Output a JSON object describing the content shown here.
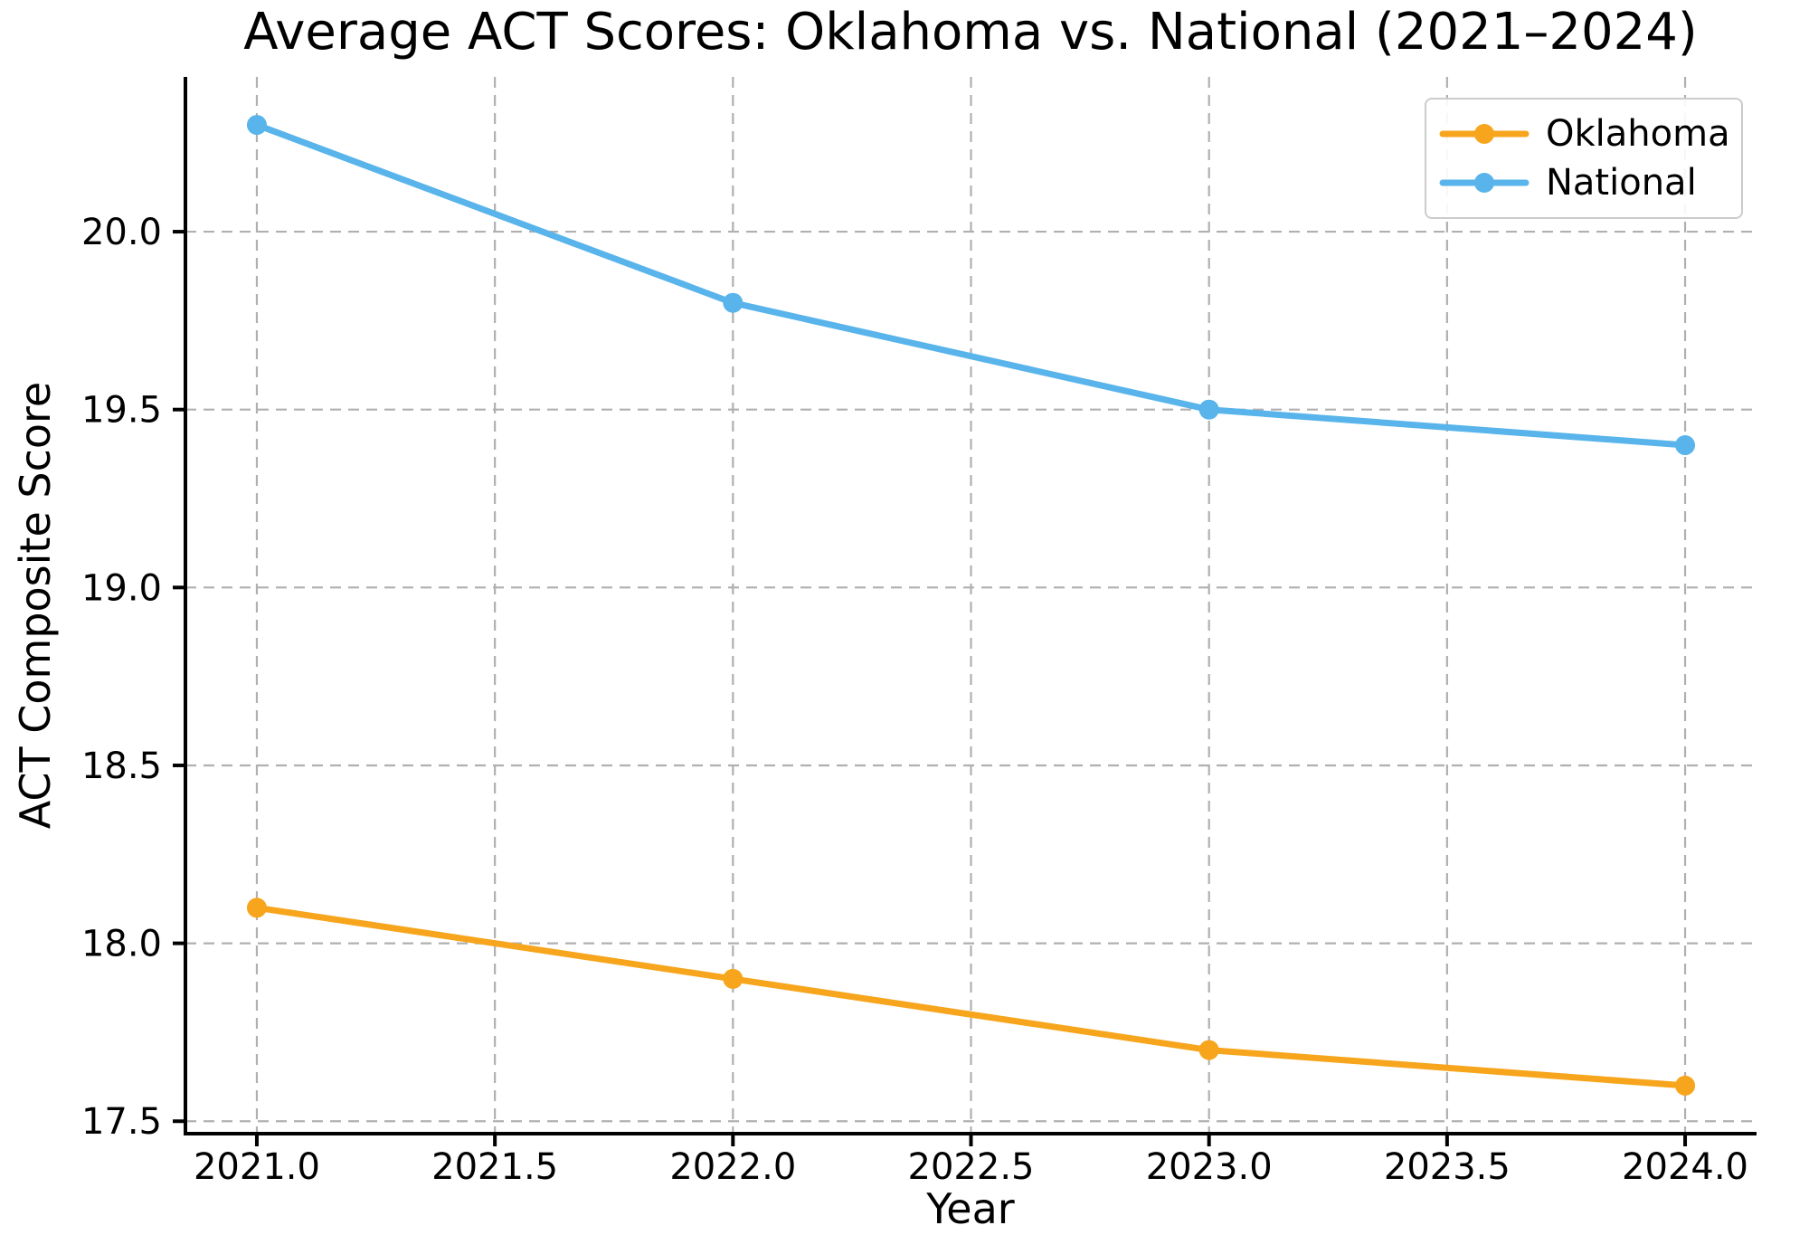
{
  "figure": {
    "background_color": "#ffffff"
  },
  "chart_data": {
    "type": "line",
    "title": "Average ACT Scores: Oklahoma vs. National (2021–2024)",
    "xlabel": "Year",
    "ylabel": "ACT Composite Score",
    "x": [
      2021,
      2022,
      2023,
      2024
    ],
    "series": [
      {
        "name": "Oklahoma",
        "color": "#F7A51C",
        "values": [
          18.1,
          17.9,
          17.7,
          17.6
        ]
      },
      {
        "name": "National",
        "color": "#58B4EA",
        "values": [
          20.3,
          19.8,
          19.5,
          19.4
        ]
      }
    ],
    "xlim": [
      2020.85,
      2024.15
    ],
    "ylim": [
      17.465,
      20.435
    ],
    "xticks": [
      2021.0,
      2021.5,
      2022.0,
      2022.5,
      2023.0,
      2023.5,
      2024.0
    ],
    "xticklabels": [
      "2021.0",
      "2021.5",
      "2022.0",
      "2022.5",
      "2023.0",
      "2023.5",
      "2024.0"
    ],
    "yticks": [
      17.5,
      18.0,
      18.5,
      19.0,
      19.5,
      20.0
    ],
    "yticklabels": [
      "17.5",
      "18.0",
      "18.5",
      "19.0",
      "19.5",
      "20.0"
    ],
    "grid": true,
    "grid_style": "dashed",
    "grid_color": "#b0b0b0",
    "axis_color": "#000000",
    "legend": {
      "position": "upper right",
      "entries": [
        "Oklahoma",
        "National"
      ]
    }
  }
}
